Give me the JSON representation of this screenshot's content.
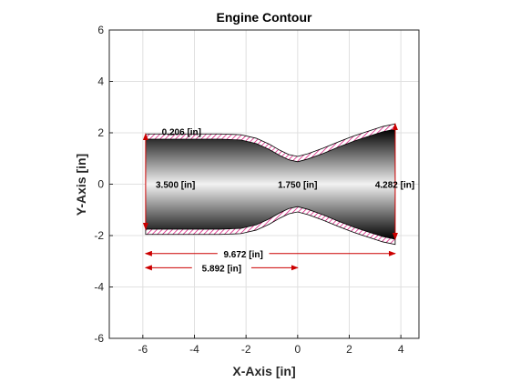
{
  "chart_data": {
    "type": "line",
    "title": "Engine Contour",
    "xlabel": "X-Axis [in]",
    "ylabel": "Y-Axis [in]",
    "xlim": [
      -7.3,
      4.7
    ],
    "ylim": [
      -6,
      6
    ],
    "xticks": [
      -6,
      -4,
      -2,
      0,
      2,
      4
    ],
    "yticks": [
      -6,
      -4,
      -2,
      0,
      2,
      4,
      6
    ],
    "xtick_labels": [
      "-6",
      "-4",
      "-2",
      "0",
      "2",
      "4"
    ],
    "ytick_labels": [
      "-6",
      "-4",
      "-2",
      "0",
      "2",
      "4",
      "6"
    ],
    "grid": true,
    "colors": {
      "wall_hatch": "#d4006e",
      "dimension": "#cc0000",
      "axis": "#262626",
      "grid": "#e0e0e0"
    },
    "contour_upper": {
      "x": [
        -5.892,
        -4.5,
        -3.0,
        -2.2,
        -1.6,
        -1.1,
        -0.7,
        -0.35,
        0,
        0.4,
        1.0,
        1.6,
        2.2,
        2.8,
        3.3,
        3.78
      ],
      "y": [
        1.75,
        1.75,
        1.75,
        1.72,
        1.58,
        1.35,
        1.12,
        0.95,
        0.875,
        0.98,
        1.2,
        1.45,
        1.68,
        1.88,
        2.04,
        2.141
      ]
    },
    "wall_thickness": 0.206,
    "annotations": {
      "wall": "0.206 [in]",
      "chamber_diameter": "3.500 [in]",
      "throat_diameter": "1.750 [in]",
      "exit_diameter": "4.282 [in]",
      "total_length": "9.672 [in]",
      "chamber_length": "5.892 [in]"
    },
    "dimension_values": {
      "x_start": -5.892,
      "x_throat": 0,
      "x_exit": 3.78,
      "chamber_radius": 1.75,
      "exit_radius": 2.141,
      "y_total_length": -2.7,
      "y_chamber_length": -3.25
    }
  }
}
